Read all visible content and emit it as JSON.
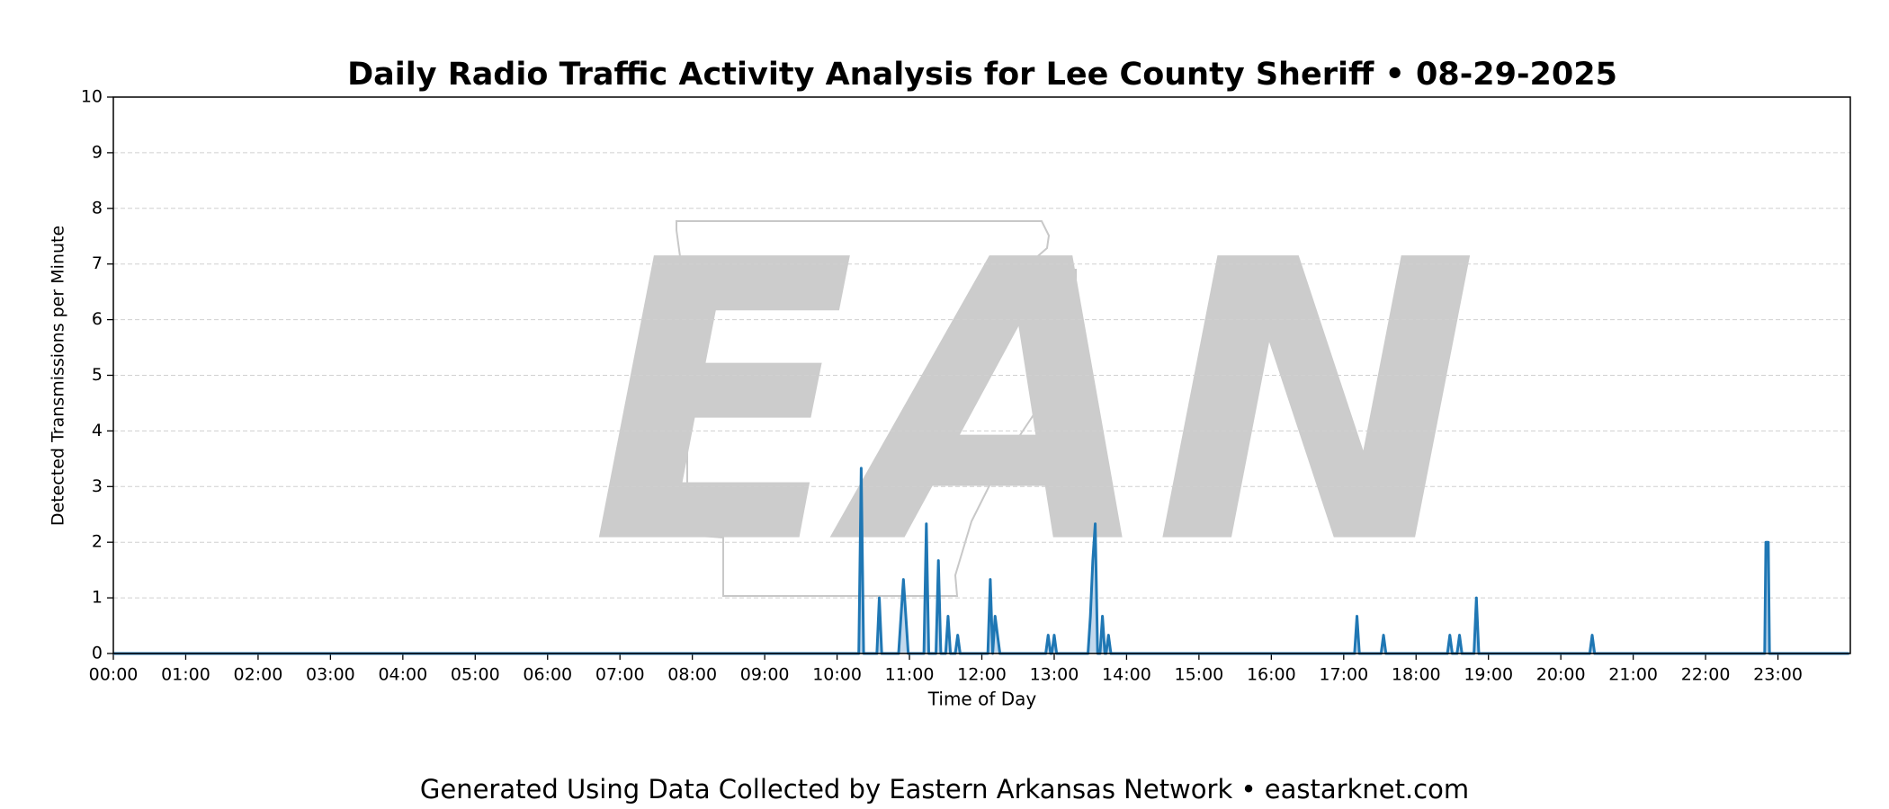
{
  "chart_data": {
    "type": "line",
    "title": "Daily Radio Traffic Activity Analysis for Lee County Sheriff • 08-29-2025",
    "xlabel": "Time of Day",
    "ylabel": "Detected Transmissions per Minute",
    "watermark": "EAN",
    "footer": "Generated Using Data Collected by Eastern Arkansas Network • eastarknet.com",
    "color": "#1f77b4",
    "fill_color": "#a9c9e6",
    "grid": true,
    "xlim": [
      0,
      1440
    ],
    "ylim": [
      0,
      10
    ],
    "yticks": [
      0,
      1,
      2,
      3,
      4,
      5,
      6,
      7,
      8,
      9,
      10
    ],
    "xticks": [
      {
        "value": 0,
        "label": "00:00"
      },
      {
        "value": 60,
        "label": "01:00"
      },
      {
        "value": 120,
        "label": "02:00"
      },
      {
        "value": 180,
        "label": "03:00"
      },
      {
        "value": 240,
        "label": "04:00"
      },
      {
        "value": 300,
        "label": "05:00"
      },
      {
        "value": 360,
        "label": "06:00"
      },
      {
        "value": 420,
        "label": "07:00"
      },
      {
        "value": 480,
        "label": "08:00"
      },
      {
        "value": 540,
        "label": "09:00"
      },
      {
        "value": 600,
        "label": "10:00"
      },
      {
        "value": 660,
        "label": "11:00"
      },
      {
        "value": 720,
        "label": "12:00"
      },
      {
        "value": 780,
        "label": "13:00"
      },
      {
        "value": 840,
        "label": "14:00"
      },
      {
        "value": 900,
        "label": "15:00"
      },
      {
        "value": 960,
        "label": "16:00"
      },
      {
        "value": 1020,
        "label": "17:00"
      },
      {
        "value": 1080,
        "label": "18:00"
      },
      {
        "value": 1140,
        "label": "19:00"
      },
      {
        "value": 1200,
        "label": "20:00"
      },
      {
        "value": 1260,
        "label": "21:00"
      },
      {
        "value": 1320,
        "label": "22:00"
      },
      {
        "value": 1380,
        "label": "23:00"
      }
    ],
    "x": [
      0,
      618,
      620,
      622,
      633,
      635,
      637,
      651,
      653,
      655,
      657,
      659,
      672,
      674,
      676,
      682,
      684,
      686,
      690,
      692,
      694,
      698,
      700,
      702,
      725,
      727,
      729,
      731,
      733,
      735,
      773,
      775,
      777,
      778,
      780,
      782,
      808,
      810,
      812,
      814,
      816,
      818,
      820,
      822,
      823,
      825,
      827,
      1029,
      1031,
      1033,
      1051,
      1053,
      1055,
      1106,
      1108,
      1110,
      1114,
      1116,
      1118,
      1128,
      1130,
      1132,
      1224,
      1226,
      1228,
      1369,
      1370,
      1372,
      1373,
      1439
    ],
    "values": [
      0,
      0,
      3.33,
      0,
      0,
      1,
      0,
      0,
      0.67,
      1.33,
      0.67,
      0,
      0,
      2.33,
      0,
      0,
      1.67,
      0,
      0,
      0.67,
      0,
      0,
      0.33,
      0,
      0,
      1.33,
      0,
      0.67,
      0.33,
      0,
      0,
      0.33,
      0,
      0,
      0.33,
      0,
      0,
      0.67,
      1.67,
      2.33,
      0,
      0,
      0.67,
      0,
      0,
      0.33,
      0,
      0,
      0.67,
      0,
      0,
      0.33,
      0,
      0,
      0.33,
      0,
      0,
      0.33,
      0,
      0,
      1,
      0,
      0,
      0.33,
      0,
      0,
      2,
      2,
      0,
      0
    ]
  }
}
